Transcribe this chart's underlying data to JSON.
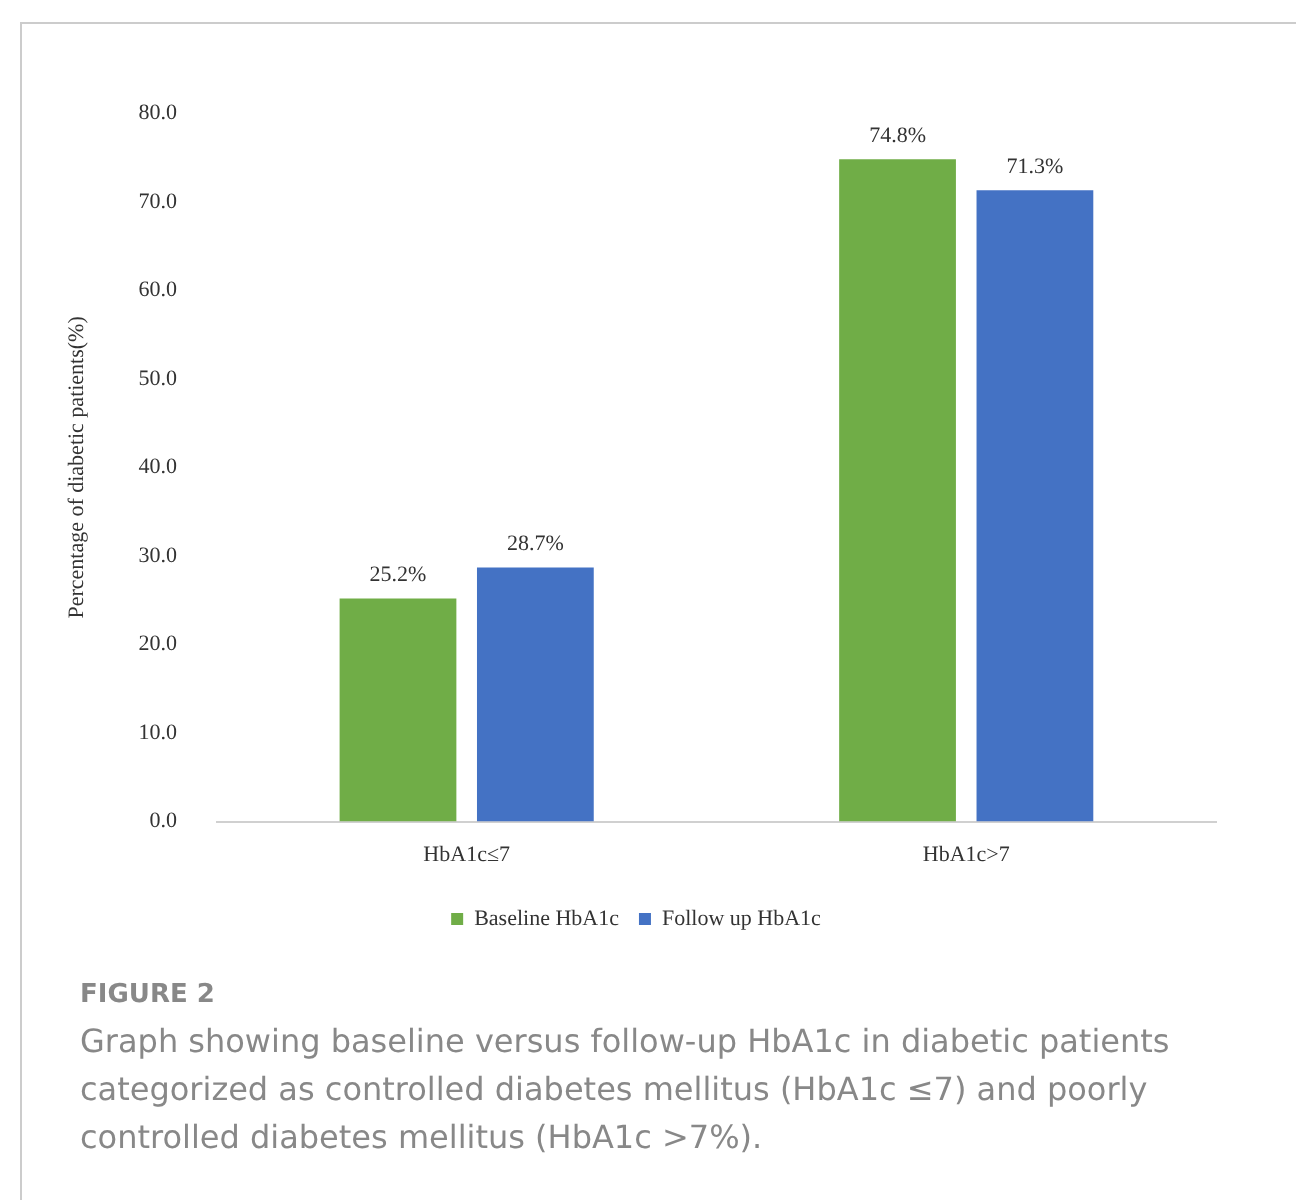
{
  "chart_data": {
    "type": "bar",
    "ylabel": "Percentage of diabetic patients(%)",
    "categories": [
      "HbA1c≤7",
      "HbA1c>7"
    ],
    "series": [
      {
        "name": "Baseline HbA1c",
        "color": "#70ad47",
        "values": [
          25.2,
          74.8
        ],
        "value_labels": [
          "25.2%",
          "74.8%"
        ]
      },
      {
        "name": "Follow up HbA1c",
        "color": "#4472c4",
        "values": [
          28.7,
          71.3
        ],
        "value_labels": [
          "28.7%",
          "71.3%"
        ]
      }
    ],
    "ylim": [
      0,
      80
    ],
    "yticks": [
      {
        "value": 0,
        "label": "0.0"
      },
      {
        "value": 10,
        "label": "10.0"
      },
      {
        "value": 20,
        "label": "20.0"
      },
      {
        "value": 30,
        "label": "30.0"
      },
      {
        "value": 40,
        "label": "40.0"
      },
      {
        "value": 50,
        "label": "50.0"
      },
      {
        "value": 60,
        "label": "60.0"
      },
      {
        "value": 70,
        "label": "70.0"
      },
      {
        "value": 80,
        "label": "80.0"
      }
    ],
    "grid": false,
    "legend": "bottom",
    "annotations": [
      "FIGURE 2",
      "Graph showing baseline versus follow-up HbA1c in diabetic patients categorized as controlled diabetes mellitus (HbA1c ≤7) and poorly controlled diabetes mellitus (HbA1c >7%)."
    ]
  }
}
